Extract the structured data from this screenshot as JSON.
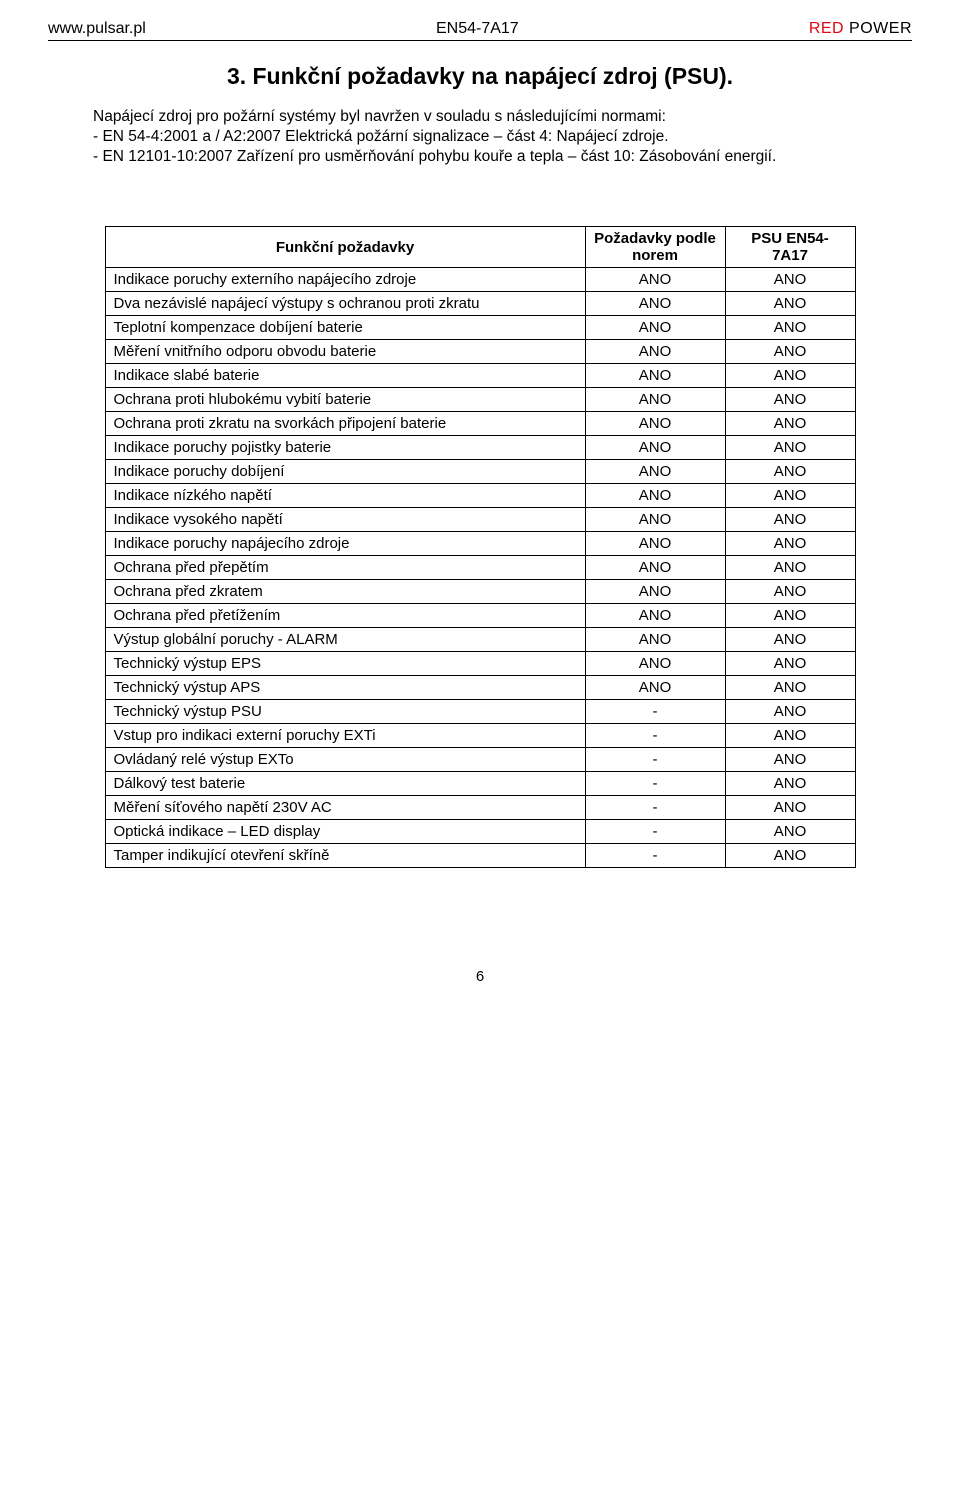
{
  "header": {
    "left": "www.pulsar.pl",
    "center": "EN54-7A17",
    "brand_red": "RED",
    "brand_rest": " POWER"
  },
  "title": "3. Funkční požadavky na napájecí zdroj (PSU).",
  "intro": {
    "l1": "Napájecí zdroj pro požární systémy byl navržen v souladu s následujícími normami:",
    "l2": "- EN 54-4:2001 a / A2:2007 Elektrická požární signalizace – část 4: Napájecí zdroje.",
    "l3": "- EN 12101-10:2007 Zařízení pro usměrňování pohybu kouře a tepla – část 10: Zásobování energií."
  },
  "thead": {
    "c1": "Funkční požadavky",
    "c2": "Požadavky podle norem",
    "c3": "PSU EN54-7A17"
  },
  "rows": [
    {
      "a": "Indikace poruchy externího napájecího zdroje",
      "b": "ANO",
      "c": "ANO"
    },
    {
      "a": "Dva nezávislé napájecí výstupy s ochranou proti zkratu",
      "b": "ANO",
      "c": "ANO"
    },
    {
      "a": "Teplotní kompenzace dobíjení baterie",
      "b": "ANO",
      "c": "ANO"
    },
    {
      "a": "Měření vnitřního odporu obvodu baterie",
      "b": "ANO",
      "c": "ANO"
    },
    {
      "a": "Indikace slabé baterie",
      "b": "ANO",
      "c": "ANO"
    },
    {
      "a": "Ochrana proti hlubokému vybití baterie",
      "b": "ANO",
      "c": "ANO"
    },
    {
      "a": "Ochrana proti zkratu na svorkách připojení baterie",
      "b": "ANO",
      "c": "ANO"
    },
    {
      "a": "Indikace poruchy pojistky baterie",
      "b": "ANO",
      "c": "ANO"
    },
    {
      "a": "Indikace poruchy dobíjení",
      "b": "ANO",
      "c": "ANO"
    },
    {
      "a": "Indikace nízkého napětí",
      "b": "ANO",
      "c": "ANO"
    },
    {
      "a": "Indikace vysokého napětí",
      "b": "ANO",
      "c": "ANO"
    },
    {
      "a": "Indikace poruchy napájecího zdroje",
      "b": "ANO",
      "c": "ANO"
    },
    {
      "a": "Ochrana před přepětím",
      "b": "ANO",
      "c": "ANO"
    },
    {
      "a": "Ochrana před zkratem",
      "b": "ANO",
      "c": "ANO"
    },
    {
      "a": "Ochrana před přetížením",
      "b": "ANO",
      "c": "ANO"
    },
    {
      "a": "Výstup globální poruchy -  ALARM",
      "b": "ANO",
      "c": "ANO"
    },
    {
      "a": "Technický výstup EPS",
      "b": "ANO",
      "c": "ANO"
    },
    {
      "a": "Technický výstup APS",
      "b": "ANO",
      "c": "ANO"
    },
    {
      "a": "Technický výstup PSU",
      "b": "-",
      "c": "ANO"
    },
    {
      "a": "Vstup pro indikaci externí poruchy EXTi",
      "b": "-",
      "c": "ANO"
    },
    {
      "a": "Ovládaný relé výstup EXTo",
      "b": "-",
      "c": "ANO"
    },
    {
      "a": "Dálkový test baterie",
      "b": "-",
      "c": "ANO"
    },
    {
      "a": "Měření síťového napětí 230V AC",
      "b": "-",
      "c": "ANO"
    },
    {
      "a": "Optická indikace – LED display",
      "b": "-",
      "c": "ANO"
    },
    {
      "a": "Tamper indikující otevření skříně",
      "b": "-",
      "c": "ANO"
    }
  ],
  "page": "6"
}
